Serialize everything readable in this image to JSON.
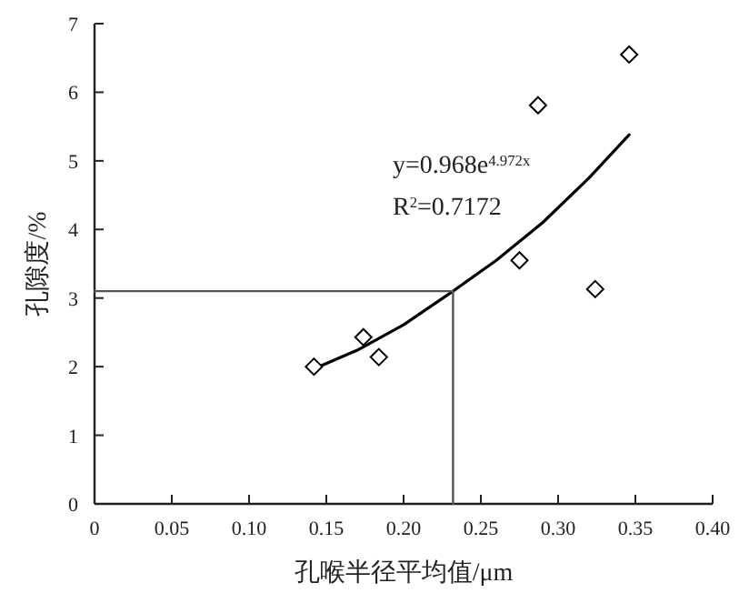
{
  "chart_data": {
    "type": "scatter",
    "xlabel": "孔喉半径平均值/μm",
    "ylabel": "孔隙度/%",
    "xlim": [
      0,
      0.4
    ],
    "ylim": [
      0,
      7
    ],
    "xticks": [
      0,
      0.05,
      {
        "value": 0.1,
        "label": "0.10"
      },
      0.15,
      {
        "value": 0.2,
        "label": "0.20"
      },
      0.25,
      {
        "value": 0.3,
        "label": "0.30"
      },
      0.35,
      {
        "value": 0.4,
        "label": "0.40"
      }
    ],
    "yticks": [
      0,
      1,
      2,
      3,
      4,
      5,
      6,
      7
    ],
    "grid": false,
    "annotations": [
      "y=0.968e$^{4.972x}$",
      "R$^{2}$=0.7172"
    ],
    "series": [
      {
        "marker": "diamond",
        "color": "#000000",
        "x": [
          0.142,
          0.174,
          0.184,
          0.275,
          0.287,
          0.324,
          0.346
        ],
        "values": [
          2.0,
          2.43,
          2.14,
          3.55,
          5.81,
          3.13,
          6.55
        ]
      },
      {
        "type": "line",
        "marker": "none",
        "color": "#000000",
        "line_style": "solid",
        "x": [
          0.142,
          0.17,
          0.2,
          0.232,
          0.26,
          0.29,
          0.32,
          0.346
        ],
        "values": [
          1.97,
          2.24,
          2.61,
          3.1,
          3.55,
          4.1,
          4.75,
          5.38
        ]
      },
      {
        "type": "line",
        "marker": "none",
        "color": "#555555",
        "line_style": "solid",
        "x": [
          0,
          0.232,
          0.232
        ],
        "values": [
          3.1,
          3.1,
          0
        ]
      }
    ]
  }
}
